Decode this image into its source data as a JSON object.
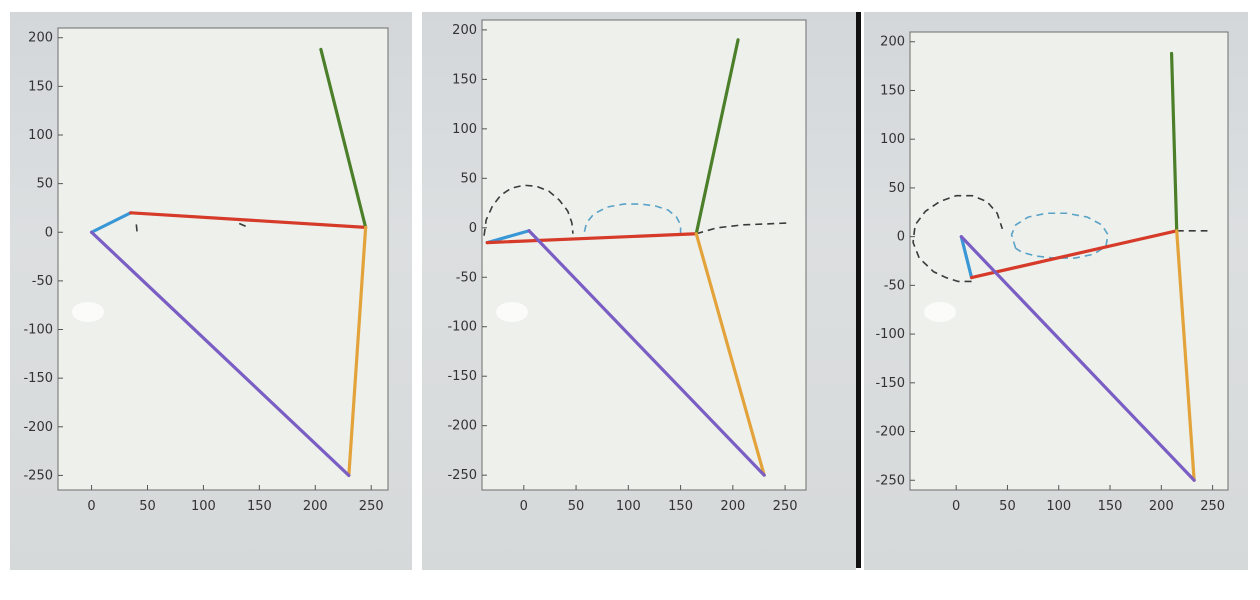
{
  "chart_data": [
    {
      "type": "line",
      "title": "",
      "xlabel": "",
      "ylabel": "",
      "xlim": [
        -30,
        265
      ],
      "ylim": [
        -265,
        210
      ],
      "grid": false,
      "x_ticks": [
        0,
        50,
        100,
        150,
        200,
        250
      ],
      "y_ticks": [
        200,
        150,
        100,
        50,
        0,
        -50,
        -100,
        -150,
        -200,
        -250
      ],
      "series": [
        {
          "color": "#3a97d6",
          "x": [
            0,
            35
          ],
          "y": [
            0,
            20
          ]
        },
        {
          "color": "#d63b2a",
          "x": [
            35,
            245
          ],
          "y": [
            20,
            5
          ]
        },
        {
          "color": "#4c7f2a",
          "x": [
            245,
            205
          ],
          "y": [
            5,
            188
          ]
        },
        {
          "color": "#e3a33b",
          "x": [
            245,
            230
          ],
          "y": [
            5,
            -250
          ]
        },
        {
          "color": "#7a5ec4",
          "x": [
            0,
            230
          ],
          "y": [
            0,
            -250
          ]
        }
      ],
      "dashed": [
        {
          "color": "#3a3a3a",
          "x": [
            40,
            41
          ],
          "y": [
            8,
            -3
          ]
        },
        {
          "color": "#3a3a3a",
          "x": [
            132,
            138
          ],
          "y": [
            9,
            6
          ]
        }
      ]
    },
    {
      "type": "line",
      "title": "",
      "xlabel": "",
      "ylabel": "",
      "xlim": [
        -40,
        270
      ],
      "ylim": [
        -265,
        210
      ],
      "grid": false,
      "x_ticks": [
        0,
        50,
        100,
        150,
        200,
        250
      ],
      "y_ticks": [
        200,
        150,
        100,
        50,
        0,
        -50,
        -100,
        -150,
        -200,
        -250
      ],
      "series": [
        {
          "color": "#3a97d6",
          "x": [
            -35,
            5
          ],
          "y": [
            -15,
            -3
          ]
        },
        {
          "color": "#d63b2a",
          "x": [
            -35,
            165
          ],
          "y": [
            -15,
            -6
          ]
        },
        {
          "color": "#4c7f2a",
          "x": [
            165,
            205
          ],
          "y": [
            -6,
            190
          ]
        },
        {
          "color": "#e3a33b",
          "x": [
            165,
            230
          ],
          "y": [
            -6,
            -250
          ]
        },
        {
          "color": "#7a5ec4",
          "x": [
            5,
            230
          ],
          "y": [
            -3,
            -250
          ]
        }
      ],
      "dashed": [
        {
          "color": "#3a3a3a",
          "x": [
            -38,
            -36,
            -30,
            -22,
            -12,
            0,
            12,
            24,
            34,
            42,
            46,
            47
          ],
          "y": [
            -8,
            8,
            22,
            33,
            40,
            43,
            42,
            37,
            28,
            17,
            5,
            -6
          ]
        },
        {
          "color": "#5aa2c8",
          "x": [
            58,
            60,
            67,
            80,
            96,
            112,
            126,
            138,
            146,
            150,
            150
          ],
          "y": [
            -4,
            5,
            14,
            21,
            24,
            24,
            22,
            18,
            11,
            3,
            -6
          ]
        },
        {
          "color": "#3a3a3a",
          "x": [
            165,
            185,
            210,
            235,
            255
          ],
          "y": [
            -6,
            0,
            3,
            4,
            5
          ]
        }
      ]
    },
    {
      "type": "line",
      "title": "",
      "xlabel": "",
      "ylabel": "",
      "xlim": [
        -45,
        265
      ],
      "ylim": [
        -260,
        210
      ],
      "grid": false,
      "x_ticks": [
        0,
        50,
        100,
        150,
        200,
        250
      ],
      "y_ticks": [
        200,
        150,
        100,
        50,
        0,
        -50,
        -100,
        -150,
        -200,
        -250
      ],
      "series": [
        {
          "color": "#3a97d6",
          "x": [
            5,
            15
          ],
          "y": [
            0,
            -42
          ]
        },
        {
          "color": "#d63b2a",
          "x": [
            15,
            215
          ],
          "y": [
            -42,
            6
          ]
        },
        {
          "color": "#4c7f2a",
          "x": [
            215,
            210
          ],
          "y": [
            6,
            188
          ]
        },
        {
          "color": "#e3a33b",
          "x": [
            215,
            232
          ],
          "y": [
            6,
            -250
          ]
        },
        {
          "color": "#7a5ec4",
          "x": [
            5,
            232
          ],
          "y": [
            0,
            -250
          ]
        }
      ],
      "dashed": [
        {
          "color": "#3a3a3a",
          "x": [
            15,
            2,
            -10,
            -22,
            -36,
            -42,
            -40,
            -30,
            -16,
            0,
            16,
            30,
            40,
            45
          ],
          "y": [
            -46,
            -46,
            -42,
            -36,
            -22,
            -6,
            12,
            26,
            36,
            42,
            42,
            36,
            24,
            8
          ]
        },
        {
          "color": "#5aa2c8",
          "x": [
            58,
            54,
            58,
            70,
            88,
            108,
            128,
            142,
            148,
            146,
            134,
            116,
            96,
            78,
            64,
            58
          ],
          "y": [
            -12,
            2,
            12,
            20,
            24,
            24,
            20,
            12,
            2,
            -10,
            -18,
            -22,
            -22,
            -20,
            -16,
            -12
          ]
        },
        {
          "color": "#3a3a3a",
          "x": [
            215,
            230,
            245
          ],
          "y": [
            6,
            6,
            6
          ]
        }
      ]
    }
  ]
}
